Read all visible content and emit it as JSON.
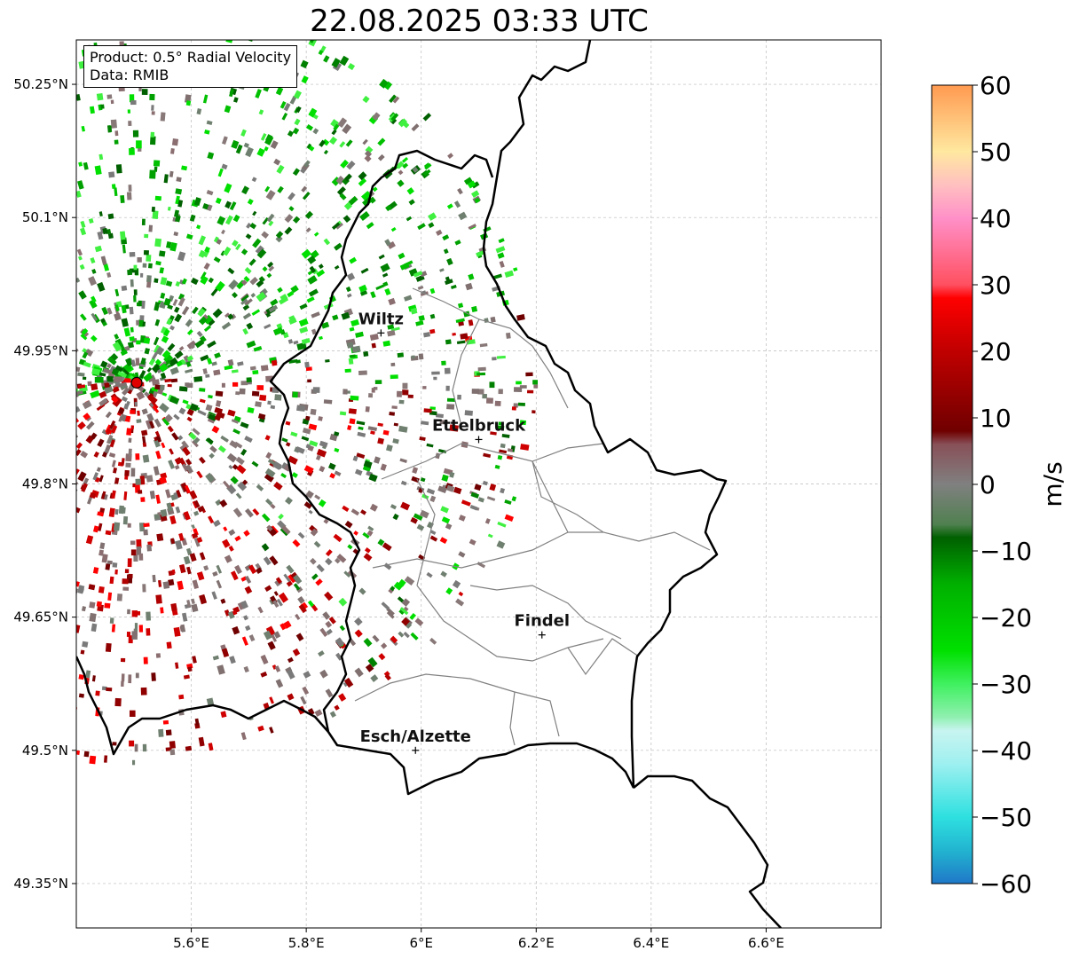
{
  "title": "22.08.2025 03:33 UTC",
  "info": {
    "product": "Product: 0.5° Radial Velocity",
    "source": "Data: RMIB"
  },
  "map": {
    "lon_range": [
      5.4,
      6.8
    ],
    "lat_range": [
      49.3,
      50.3
    ],
    "lon_ticks": [
      {
        "value": 5.6,
        "label": "5.6°E"
      },
      {
        "value": 5.8,
        "label": "5.8°E"
      },
      {
        "value": 6.0,
        "label": "6°E"
      },
      {
        "value": 6.2,
        "label": "6.2°E"
      },
      {
        "value": 6.4,
        "label": "6.4°E"
      },
      {
        "value": 6.6,
        "label": "6.6°E"
      }
    ],
    "lat_ticks": [
      {
        "value": 50.25,
        "label": "50.25°N"
      },
      {
        "value": 50.1,
        "label": "50.1°N"
      },
      {
        "value": 49.95,
        "label": "49.95°N"
      },
      {
        "value": 49.8,
        "label": "49.8°N"
      },
      {
        "value": 49.65,
        "label": "49.65°N"
      },
      {
        "value": 49.5,
        "label": "49.5°N"
      },
      {
        "value": 49.35,
        "label": "49.35°N"
      }
    ],
    "grid": true,
    "radar_site": {
      "lon": 5.505,
      "lat": 49.914,
      "color": "#e00000"
    },
    "cities": [
      {
        "name": "Wiltz",
        "lon": 5.93,
        "lat": 49.97
      },
      {
        "name": "Ettelbruck",
        "lon": 6.1,
        "lat": 49.85
      },
      {
        "name": "Findel",
        "lon": 6.21,
        "lat": 49.63
      },
      {
        "name": "Esch/Alzette",
        "lon": 5.99,
        "lat": 49.5
      }
    ]
  },
  "colorbar": {
    "label": "m/s",
    "min": -60,
    "max": 60,
    "ticks": [
      {
        "value": 60,
        "label": "60"
      },
      {
        "value": 50,
        "label": "50"
      },
      {
        "value": 40,
        "label": "40"
      },
      {
        "value": 30,
        "label": "30"
      },
      {
        "value": 20,
        "label": "20"
      },
      {
        "value": 10,
        "label": "10"
      },
      {
        "value": 0,
        "label": "0"
      },
      {
        "value": -10,
        "label": "−10"
      },
      {
        "value": -20,
        "label": "−20"
      },
      {
        "value": -30,
        "label": "−30"
      },
      {
        "value": -40,
        "label": "−40"
      },
      {
        "value": -50,
        "label": "−50"
      },
      {
        "value": -60,
        "label": "−60"
      }
    ],
    "stops": [
      {
        "value": -60,
        "color": "#1f78c8"
      },
      {
        "value": -55,
        "color": "#22b4d0"
      },
      {
        "value": -50,
        "color": "#2ee0e0"
      },
      {
        "value": -42,
        "color": "#9ef0f0"
      },
      {
        "value": -37,
        "color": "#c8f4f0"
      },
      {
        "value": -35,
        "color": "#90f0b0"
      },
      {
        "value": -30,
        "color": "#40f060"
      },
      {
        "value": -25,
        "color": "#00e000"
      },
      {
        "value": -15,
        "color": "#00b000"
      },
      {
        "value": -8,
        "color": "#006000"
      },
      {
        "value": -6,
        "color": "#508050"
      },
      {
        "value": 0,
        "color": "#808080"
      },
      {
        "value": 6,
        "color": "#885058"
      },
      {
        "value": 8,
        "color": "#700000"
      },
      {
        "value": 20,
        "color": "#c00000"
      },
      {
        "value": 28,
        "color": "#ff0000"
      },
      {
        "value": 30,
        "color": "#ff5060"
      },
      {
        "value": 40,
        "color": "#ff90c8"
      },
      {
        "value": 45,
        "color": "#ffc0c0"
      },
      {
        "value": 50,
        "color": "#ffe8a0"
      },
      {
        "value": 60,
        "color": "#ff9a50"
      }
    ]
  }
}
